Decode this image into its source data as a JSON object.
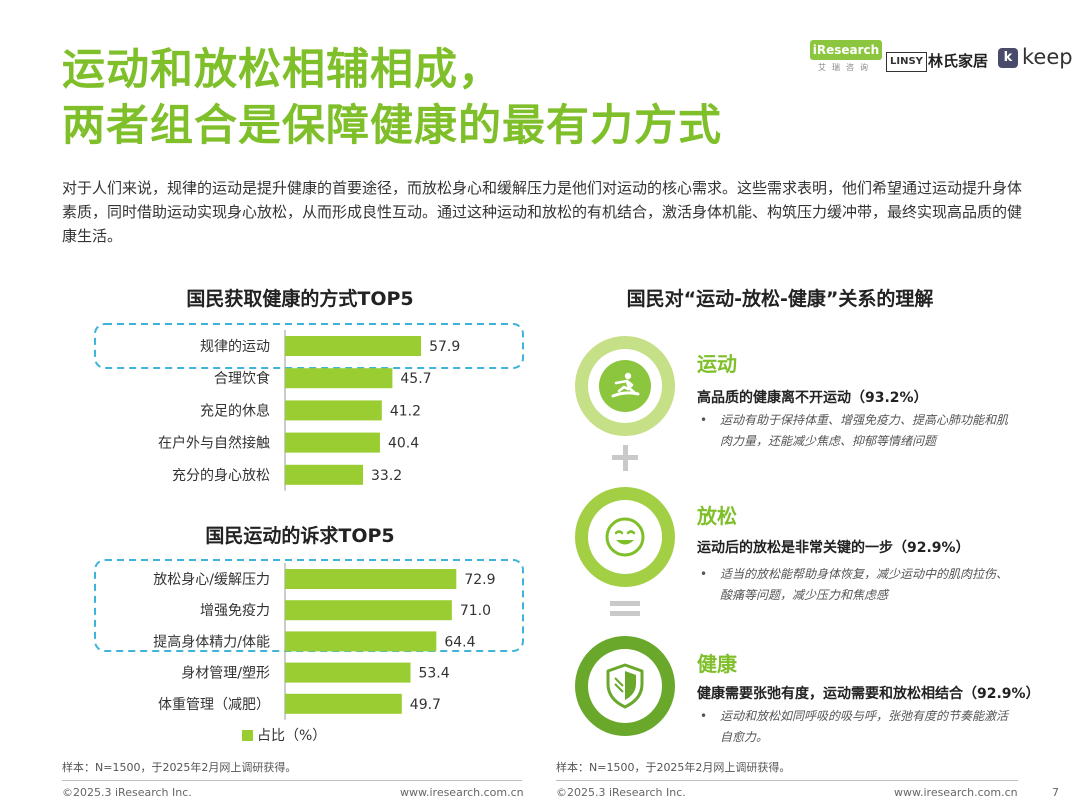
{
  "title": {
    "line1": "运动和放松相辅相成，",
    "line2": "两者组合是保障健康的最有力方式"
  },
  "intro": "对于人们来说，规律的运动是提升健康的首要途径，而放松身心和缓解压力是他们对运动的核心需求。这些需求表明，他们希望通过运动提升身体素质，同时借助运动实现身心放松，从而形成良性互动。通过这种运动和放松的有机结合，激活身体机能、构筑压力缓冲带，最终实现高品质的健康生活。",
  "logos": {
    "iresearch": "iResearch",
    "iresearch_sub": "艾瑞咨询",
    "linsy": "LINSY",
    "linsy_cn": "林氏家居",
    "keep_mark": "k",
    "keep": "keep"
  },
  "chart_data": [
    {
      "type": "bar",
      "orientation": "horizontal",
      "title": "国民获取健康的方式TOP5",
      "categories": [
        "规律的运动",
        "合理饮食",
        "充足的休息",
        "在户外与自然接触",
        "充分的身心放松"
      ],
      "values": [
        57.9,
        45.7,
        41.2,
        40.4,
        33.2
      ],
      "highlighted": [
        "规律的运动"
      ],
      "unit": "%",
      "color": "#9acd32"
    },
    {
      "type": "bar",
      "orientation": "horizontal",
      "title": "国民运动的诉求TOP5",
      "categories": [
        "放松身心/缓解压力",
        "增强免疫力",
        "提高身体精力/体能",
        "身材管理/塑形",
        "体重管理（减肥）"
      ],
      "values": [
        72.9,
        71.0,
        64.4,
        53.4,
        49.7
      ],
      "highlighted": [
        "放松身心/缓解压力",
        "增强免疫力",
        "提高身体精力/体能"
      ],
      "unit": "%",
      "color": "#9acd32"
    }
  ],
  "legend": {
    "label": "占比（%）"
  },
  "right": {
    "title": "国民对“运动-放松-健康”关系的理解",
    "items": [
      {
        "heading": "运动",
        "subtitle": "高品质的健康离不开运动（93.2%）",
        "bullet": "运动有助于保持体重、增强免疫力、提高心肺功能和肌肉力量，还能减少焦虑、抑郁等情绪问题",
        "icon": "surfing-person-icon"
      },
      {
        "heading": "放松",
        "subtitle": "运动后的放松是非常关键的一步（92.9%）",
        "bullet": "适当的放松能帮助身体恢复，减少运动中的肌肉拉伤、酸痛等问题，减少压力和焦虑感",
        "icon": "smiley-icon"
      },
      {
        "heading": "健康",
        "subtitle": "健康需要张弛有度，运动需要和放松相结合（92.9%）",
        "bullet": "运动和放松如同呼吸的吸与呼，张弛有度的节奏能激活自愈力。",
        "icon": "shield-icon"
      }
    ],
    "plus_sign": "+",
    "equals_sign": "="
  },
  "notes": {
    "left": "样本：N=1500，于2025年2月网上调研获得。",
    "right": "样本：N=1500，于2025年2月网上调研获得。"
  },
  "footer": {
    "copyright_left": "©2025.3 iResearch Inc.",
    "url_left": "www.iresearch.com.cn",
    "copyright_right": "©2025.3 iResearch Inc.",
    "url_right": "www.iresearch.com.cn",
    "page": "7"
  },
  "colors": {
    "accent": "#7fbf2a",
    "bar": "#9acd32",
    "highlight_border": "#3fb3d9",
    "ring_light": "#c5e086",
    "ring_mid": "#a3cf45",
    "ring_dark": "#6aa82c"
  }
}
